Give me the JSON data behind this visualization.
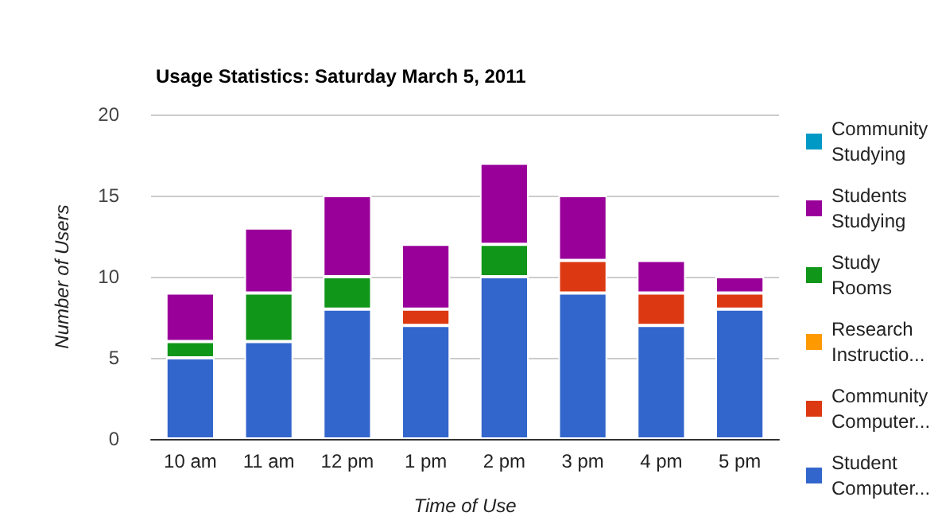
{
  "chart_data": {
    "type": "bar",
    "title": "Usage Statistics: Saturday March 5, 2011",
    "xlabel": "Time of Use",
    "ylabel": "Number of Users",
    "categories": [
      "10 am",
      "11 am",
      "12 pm",
      "1 pm",
      "2 pm",
      "3 pm",
      "4 pm",
      "5 pm"
    ],
    "stacked": true,
    "ylim": [
      0,
      20
    ],
    "yticks": [
      0,
      5,
      10,
      15,
      20
    ],
    "grid": "y",
    "legend": "right",
    "series": [
      {
        "name": "Student Computer...",
        "color": "#3366cc",
        "values": [
          5,
          6,
          8,
          7,
          10,
          9,
          7,
          8
        ]
      },
      {
        "name": "Community Computer...",
        "color": "#dc3912",
        "values": [
          0,
          0,
          0,
          1,
          0,
          2,
          2,
          1
        ]
      },
      {
        "name": "Research Instructio...",
        "color": "#ff9900",
        "values": [
          0,
          0,
          0,
          0,
          0,
          0,
          0,
          0
        ]
      },
      {
        "name": "Study Rooms",
        "color": "#109618",
        "values": [
          1,
          3,
          2,
          0,
          2,
          0,
          0,
          0
        ]
      },
      {
        "name": "Students Studying",
        "color": "#990099",
        "values": [
          3,
          4,
          5,
          4,
          5,
          4,
          2,
          1
        ]
      },
      {
        "name": "Community Studying",
        "color": "#0099c6",
        "values": [
          0,
          0,
          0,
          0,
          0,
          0,
          0,
          0
        ]
      }
    ]
  }
}
